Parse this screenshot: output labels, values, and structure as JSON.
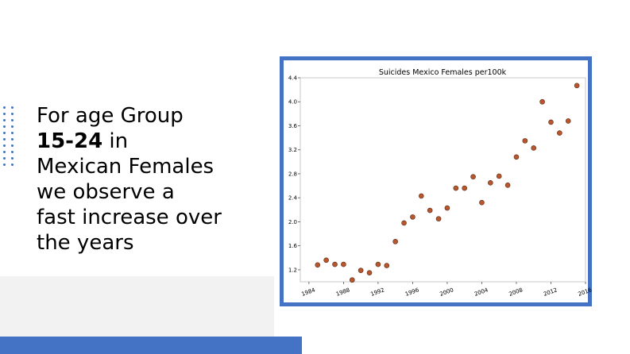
{
  "slide": {
    "line1": "For age Group",
    "bold": "15-24",
    "line2_rest": " in",
    "line3": "Mexican Females",
    "line4": "we observe a",
    "line5": "fast increase over",
    "line6": "the years"
  },
  "colors": {
    "accent": "#4472c4",
    "point_fill": "#b8562d",
    "point_stroke": "#5a2a14",
    "panel": "#f2f2f2"
  },
  "chart_data": {
    "type": "scatter",
    "title": "Suicides Mexico Females per100k",
    "xlabel": "",
    "ylabel": "",
    "xlim": [
      1983,
      2016
    ],
    "ylim": [
      1.0,
      4.4
    ],
    "xticks": [
      1984,
      1988,
      1992,
      1996,
      2000,
      2004,
      2008,
      2012,
      2016
    ],
    "yticks": [
      1.2,
      1.6,
      2.0,
      2.4,
      2.8,
      3.2,
      3.6,
      4.0,
      4.4
    ],
    "xtick_labels": [
      "1984",
      "1988",
      "1992",
      "1996",
      "2000",
      "2004",
      "2008",
      "2012",
      "2016"
    ],
    "ytick_labels": [
      "1.2",
      "1.6",
      "2.0",
      "2.4",
      "2.8",
      "3.2",
      "3.6",
      "4.0",
      "4.4"
    ],
    "grid": false,
    "x": [
      1985,
      1986,
      1987,
      1988,
      1989,
      1990,
      1991,
      1992,
      1993,
      1994,
      1995,
      1996,
      1997,
      1998,
      1999,
      2000,
      2001,
      2002,
      2003,
      2004,
      2005,
      2006,
      2007,
      2008,
      2009,
      2010,
      2011,
      2012,
      2013,
      2014,
      2015
    ],
    "y": [
      1.28,
      1.36,
      1.29,
      1.29,
      1.03,
      1.19,
      1.15,
      1.29,
      1.27,
      1.67,
      1.98,
      2.08,
      2.43,
      2.19,
      2.05,
      2.23,
      2.56,
      2.56,
      2.75,
      2.32,
      2.65,
      2.76,
      2.61,
      3.08,
      3.35,
      3.23,
      4.0,
      3.66,
      3.48,
      3.68,
      4.27
    ]
  }
}
